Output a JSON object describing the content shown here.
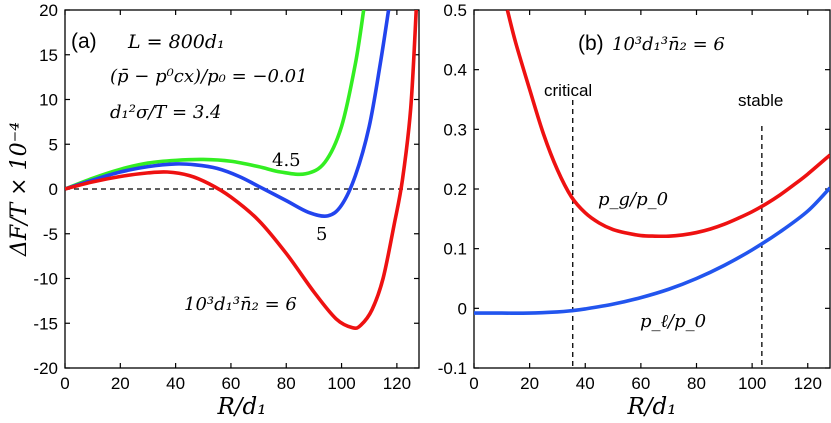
{
  "chart_data": [
    {
      "type": "line",
      "panel_label": "(a)",
      "xlabel": "R/d₁",
      "ylabel": "ΔF/T × 10⁻⁴",
      "xlim": [
        0,
        128
      ],
      "ylim": [
        -20,
        20
      ],
      "x_ticks": [
        "0",
        "20",
        "40",
        "60",
        "80",
        "100",
        "120"
      ],
      "y_ticks": [
        "20",
        "15",
        "10",
        "5",
        "0",
        "-5",
        "-10",
        "-15",
        "-20"
      ],
      "annotations": [
        "L = 800d₁",
        "(p̄ − p⁰cx)/p₀ = −0.01",
        "d₁²σ/T = 3.4"
      ],
      "reference_line": {
        "y": 0,
        "style": "dashed"
      },
      "series": [
        {
          "name": "10³d₁³n̄₂ = 4.5",
          "label": "4.5",
          "color": "#33ee22",
          "x": [
            0,
            10,
            20,
            30,
            40,
            50,
            60,
            70,
            78,
            87,
            94,
            100,
            105,
            108
          ],
          "y": [
            0,
            1.2,
            2.2,
            2.9,
            3.2,
            3.3,
            3.1,
            2.5,
            1.9,
            1.7,
            3.0,
            7.0,
            14.0,
            20.0
          ]
        },
        {
          "name": "10³d₁³n̄₂ = 5",
          "label": "5",
          "color": "#2244ee",
          "x": [
            0,
            10,
            20,
            30,
            40,
            47,
            55,
            63,
            70,
            80,
            88,
            95,
            100,
            105,
            110,
            114,
            117
          ],
          "y": [
            0,
            1.0,
            1.9,
            2.5,
            2.8,
            2.7,
            2.3,
            1.4,
            0.3,
            -1.3,
            -2.6,
            -3.0,
            -1.8,
            1.5,
            7.0,
            14.0,
            20.0
          ]
        },
        {
          "name": "10³d₁³n̄₂ = 6",
          "label": "10³d₁³n̄₂ = 6",
          "color": "#ee1111",
          "x": [
            0,
            10,
            20,
            30,
            37,
            45,
            52,
            60,
            70,
            80,
            90,
            98,
            104,
            107,
            111,
            115,
            119,
            122,
            125,
            127
          ],
          "y": [
            0,
            0.8,
            1.4,
            1.8,
            1.9,
            1.5,
            0.6,
            -0.9,
            -3.5,
            -7.2,
            -11.5,
            -14.5,
            -15.5,
            -15.2,
            -13.5,
            -10.0,
            -4.0,
            1.0,
            9.0,
            20.0
          ]
        }
      ]
    },
    {
      "type": "line",
      "panel_label": "(b)",
      "xlabel": "R/d₁",
      "ylabel": "",
      "xlim": [
        0,
        128
      ],
      "ylim": [
        -0.1,
        0.5
      ],
      "x_ticks": [
        "0",
        "20",
        "40",
        "60",
        "80",
        "100",
        "120"
      ],
      "y_ticks": [
        "0.5",
        "0.4",
        "0.3",
        "0.2",
        "0.1",
        "0",
        "-0.1"
      ],
      "annotations": [
        "10³d₁³n̄₂ = 6"
      ],
      "vertical_lines": [
        {
          "x": 35.5,
          "label": "critical"
        },
        {
          "x": 103.5,
          "label": "stable"
        }
      ],
      "series": [
        {
          "name": "p_g/p_0",
          "label": "p_g/p_0",
          "color": "#ee1111",
          "x": [
            12,
            15,
            20,
            25,
            30,
            35,
            40,
            45,
            50,
            55,
            60,
            65,
            70,
            75,
            80,
            85,
            90,
            95,
            100,
            105,
            110,
            115,
            120,
            128
          ],
          "y": [
            0.5,
            0.445,
            0.367,
            0.292,
            0.232,
            0.187,
            0.16,
            0.143,
            0.132,
            0.126,
            0.122,
            0.121,
            0.121,
            0.123,
            0.127,
            0.133,
            0.141,
            0.151,
            0.162,
            0.175,
            0.19,
            0.207,
            0.225,
            0.257
          ]
        },
        {
          "name": "p_l/p_0",
          "label": "p_ℓ/p_0",
          "color": "#2255ee",
          "x": [
            0,
            10,
            20,
            30,
            35,
            40,
            50,
            60,
            70,
            80,
            90,
            100,
            110,
            120,
            128
          ],
          "y": [
            -0.008,
            -0.008,
            -0.008,
            -0.006,
            -0.004,
            -0.001,
            0.007,
            0.018,
            0.032,
            0.05,
            0.072,
            0.098,
            0.128,
            0.163,
            0.202
          ]
        }
      ]
    }
  ]
}
